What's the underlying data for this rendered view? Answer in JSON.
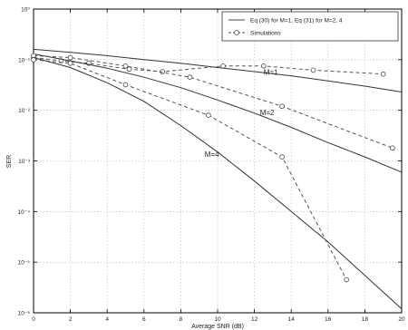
{
  "chart_data": {
    "type": "line",
    "title": "",
    "xlabel": "Average SNR (dB)",
    "ylabel": "SER",
    "x_ticks": [
      0,
      2,
      4,
      6,
      8,
      10,
      12,
      14,
      16,
      18,
      20
    ],
    "xlim": [
      0,
      20
    ],
    "ylim_log10": [
      -6,
      0
    ],
    "y_ticks_text": [
      "10⁰",
      "10⁻¹",
      "10⁻²",
      "10⁻³",
      "10⁻⁴",
      "10⁻⁵",
      "10⁻⁶"
    ],
    "yscale": "log",
    "grid": true,
    "legend_position": "top-right",
    "legend": {
      "analytical": "Eq (30) for M=1, Eq (31) for M=2, 4",
      "simulation": "Simulations"
    },
    "series": [
      {
        "name": "M=1",
        "style": "analytical",
        "x": [
          0,
          2,
          4,
          6,
          8,
          10,
          12,
          14,
          16,
          18,
          20
        ],
        "y": [
          0.16,
          0.14,
          0.12,
          0.1,
          0.085,
          0.07,
          0.058,
          0.048,
          0.038,
          0.03,
          0.023
        ]
      },
      {
        "name": "M=1",
        "style": "simulation",
        "x": [
          0,
          1.5,
          3,
          5.2,
          7,
          10.3,
          12.5,
          15.2,
          19
        ],
        "y": [
          0.11,
          0.095,
          0.085,
          0.065,
          0.058,
          0.075,
          0.075,
          0.062,
          0.052
        ]
      },
      {
        "name": "M=2",
        "style": "analytical",
        "x": [
          0,
          2,
          4,
          6,
          8,
          10,
          12,
          14,
          16,
          18,
          20
        ],
        "y": [
          0.13,
          0.095,
          0.068,
          0.045,
          0.028,
          0.016,
          0.0088,
          0.0046,
          0.0023,
          0.0012,
          0.0006
        ]
      },
      {
        "name": "M=2",
        "style": "simulation",
        "x": [
          0,
          2,
          5,
          8.5,
          13.5,
          19.5
        ],
        "y": [
          0.12,
          0.11,
          0.075,
          0.045,
          0.012,
          0.0018
        ]
      },
      {
        "name": "M=4",
        "style": "analytical",
        "x": [
          0,
          2,
          4,
          6,
          8,
          10,
          12,
          14,
          16,
          18,
          20
        ],
        "y": [
          0.11,
          0.07,
          0.035,
          0.015,
          0.005,
          0.0015,
          0.0004,
          0.0001,
          2.5e-05,
          5.5e-06,
          1.2e-06
        ]
      },
      {
        "name": "M=4",
        "style": "simulation",
        "x": [
          0,
          2,
          5,
          9.5,
          13.5,
          17
        ],
        "y": [
          0.1,
          0.085,
          0.032,
          0.008,
          0.0012,
          4.5e-06
        ]
      }
    ],
    "annotations": [
      {
        "text": "M=1",
        "x": 12.5,
        "y": 0.05
      },
      {
        "text": "M=2",
        "x": 12.3,
        "y": 0.008
      },
      {
        "text": "M=4",
        "x": 9.3,
        "y": 0.0012
      }
    ]
  }
}
